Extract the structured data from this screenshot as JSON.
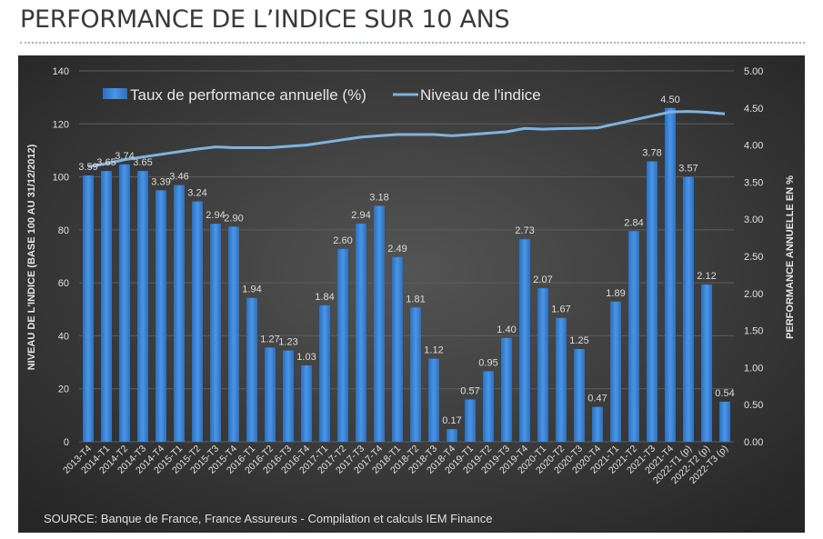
{
  "page": {
    "title": "PERFORMANCE DE L’INDICE SUR 10 ANS"
  },
  "chart_data": {
    "type": "bar+line",
    "title": "",
    "categories": [
      "2013-T4",
      "2014-T1",
      "2014-T2",
      "2014-T3",
      "2014-T4",
      "2015-T1",
      "2015-T2",
      "2015-T3",
      "2015-T4",
      "2016-T1",
      "2016-T2",
      "2016-T3",
      "2016-T4",
      "2017-T1",
      "2017-T2",
      "2017-T3",
      "2017-T4",
      "2018-T1",
      "2018-T2",
      "2018-T3",
      "2018-T4",
      "2019-T1",
      "2019-T2",
      "2019-T3",
      "2019-T4",
      "2020-T1",
      "2020-T2",
      "2020-T3",
      "2020-T4",
      "2021-T1",
      "2021-T2",
      "2021-T3",
      "2021-T4",
      "2022-T1 (p)",
      "2022-T2 (p)",
      "2022-T3 (p)"
    ],
    "series": [
      {
        "name": "Taux de performance annuelle (%)",
        "type": "bar",
        "axis": "right",
        "values": [
          3.59,
          3.65,
          3.74,
          3.65,
          3.39,
          3.46,
          3.24,
          2.94,
          2.9,
          1.94,
          1.27,
          1.23,
          1.03,
          1.84,
          2.6,
          2.94,
          3.18,
          2.49,
          1.81,
          1.12,
          0.17,
          0.57,
          0.95,
          1.4,
          2.73,
          2.07,
          1.67,
          1.25,
          0.47,
          1.89,
          2.84,
          3.78,
          4.5,
          3.57,
          2.12,
          0.54
        ],
        "labels": [
          "3.59",
          "3.65",
          "3.74",
          "3.65",
          "3.39",
          "3.46",
          "3.24",
          "2.94",
          "2.90",
          "1.94",
          "1.27",
          "1.23",
          "1.03",
          "1.84",
          "2.60",
          "2.94",
          "3.18",
          "2.49",
          "1.81",
          "1.12",
          "0.17",
          "0.57",
          "0.95",
          "1.40",
          "2.73",
          "2.07",
          "1.67",
          "1.25",
          "0.47",
          "1.89",
          "2.84",
          "3.78",
          "4.50",
          "3.57",
          "2.12",
          "0.54"
        ],
        "color": "#3d86d6"
      },
      {
        "name": "Niveau de l'indice",
        "type": "line",
        "axis": "left",
        "values": [
          103.8,
          105,
          106.5,
          107.5,
          108.5,
          109.5,
          110.5,
          111.3,
          111,
          111,
          111,
          111.5,
          112,
          113,
          114,
          115,
          115.5,
          116,
          116,
          116,
          115.5,
          116,
          116.5,
          117,
          118.3,
          118,
          118.2,
          118.3,
          118.5,
          120,
          121.5,
          123,
          124.5,
          124.7,
          124.4,
          123.8
        ],
        "color": "#7fb2e0"
      }
    ],
    "left_axis": {
      "label": "NIVEAU DE L'INDICE (BASE 100 AU 31/12/2012)",
      "range": [
        0,
        140
      ],
      "ticks": [
        "0",
        "20",
        "40",
        "60",
        "80",
        "100",
        "120",
        "140"
      ]
    },
    "right_axis": {
      "label": "PERFORMANCE ANNUELLE EN %",
      "range": [
        0,
        5
      ],
      "ticks": [
        "0.00",
        "0.50",
        "1.00",
        "1.50",
        "2.00",
        "2.50",
        "3.00",
        "3.50",
        "4.00",
        "4.50",
        "5.00"
      ]
    },
    "grid": true,
    "legend_position": "top",
    "background": "#333333",
    "source": "SOURCE: Banque de France, France Assureurs - Compilation et calculs IEM Finance"
  }
}
